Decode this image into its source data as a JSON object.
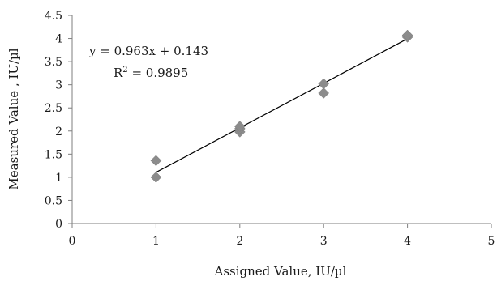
{
  "chart_data": {
    "type": "scatter",
    "xlabel": "Assigned Value, IU/µl",
    "ylabel": "Measured Value , IU/µl",
    "xlim": [
      0,
      5
    ],
    "ylim": [
      0,
      4.5
    ],
    "x_ticks": [
      "0",
      "1",
      "2",
      "3",
      "4",
      "5"
    ],
    "y_ticks": [
      "0",
      "0.5",
      "1",
      "1.5",
      "2",
      "2.5",
      "3",
      "3.5",
      "4",
      "4.5"
    ],
    "grid": false,
    "points": [
      {
        "x": 1,
        "y": 1.0
      },
      {
        "x": 1,
        "y": 1.36
      },
      {
        "x": 2,
        "y": 1.98
      },
      {
        "x": 2,
        "y": 2.05
      },
      {
        "x": 2,
        "y": 2.1
      },
      {
        "x": 3,
        "y": 2.82
      },
      {
        "x": 3,
        "y": 3.02
      },
      {
        "x": 4,
        "y": 4.03
      },
      {
        "x": 4,
        "y": 4.07
      }
    ],
    "trendline": {
      "slope": 0.963,
      "intercept": 0.143,
      "x_start": 1,
      "x_end": 4
    },
    "equation_label": "y = 0.963x + 0.143",
    "r2_prefix": "R",
    "r2_exp": "2",
    "r2_value": " = 0.9895",
    "colors": {
      "points": "#8c8c8c",
      "trendline": "#000000",
      "axis": "#7f7f7f"
    }
  }
}
